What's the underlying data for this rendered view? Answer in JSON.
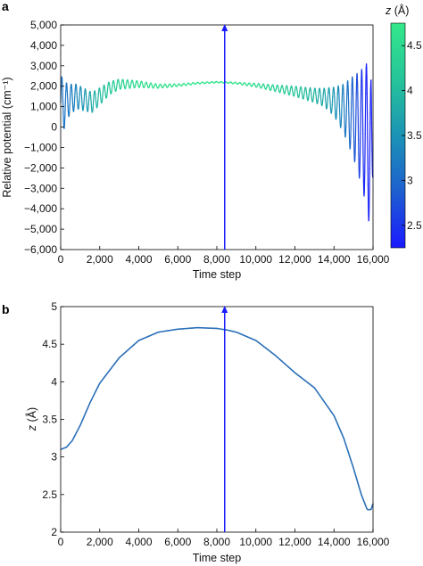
{
  "chart_data": [
    {
      "panel": "a",
      "type": "line",
      "xlabel": "Time step",
      "ylabel": "Relative potential (cm⁻¹)",
      "xlim": [
        0,
        16000
      ],
      "ylim": [
        -6000,
        5000
      ],
      "xticks": [
        0,
        2000,
        4000,
        6000,
        8000,
        10000,
        12000,
        14000,
        16000
      ],
      "xtick_labels": [
        "0",
        "2,000",
        "4,000",
        "6,000",
        "8,000",
        "10,000",
        "12,000",
        "14,000",
        "16,000"
      ],
      "yticks": [
        -6000,
        -5000,
        -4000,
        -3000,
        -2000,
        -1000,
        0,
        1000,
        2000,
        3000,
        4000,
        5000
      ],
      "ytick_labels": [
        "−6,000",
        "−5,000",
        "−4,000",
        "−3,000",
        "−2,000",
        "−1,000",
        "0",
        "1,000",
        "2,000",
        "3,000",
        "4,000",
        "5,000"
      ],
      "oscillation_period": 240,
      "x": [
        0,
        150,
        400,
        800,
        1200,
        1600,
        2000,
        2500,
        3000,
        4000,
        5000,
        6000,
        7000,
        8000,
        8500,
        9000,
        10000,
        11000,
        12000,
        13000,
        13500,
        14000,
        14500,
        15000,
        15300,
        15600,
        15800,
        15900,
        16000
      ],
      "center": [
        1200,
        1050,
        1300,
        1500,
        1350,
        1200,
        1500,
        1900,
        2100,
        2100,
        2000,
        2050,
        2150,
        2200,
        2180,
        2150,
        2050,
        1900,
        1750,
        1550,
        1450,
        1250,
        900,
        500,
        100,
        -300,
        -700,
        -1200,
        -2300
      ],
      "amplitude": [
        1400,
        1200,
        800,
        600,
        550,
        500,
        420,
        320,
        250,
        160,
        100,
        60,
        40,
        30,
        30,
        40,
        90,
        160,
        250,
        350,
        450,
        700,
        1200,
        2000,
        2600,
        3300,
        4000,
        3500,
        0
      ],
      "colorbar": {
        "label": "z (Å)",
        "range": [
          2.25,
          4.75
        ],
        "ticks": [
          2.5,
          3,
          3.5,
          4,
          4.5
        ],
        "tick_labels": [
          "2.5",
          "3",
          "3.5",
          "4",
          "4.5"
        ],
        "colors": [
          "#1a1aff",
          "#1e5fd0",
          "#1b93b5",
          "#26c49a",
          "#33e88a"
        ]
      },
      "marker_x": 8400,
      "marker_color": "#1a1aff"
    },
    {
      "panel": "b",
      "type": "line",
      "xlabel": "Time step",
      "ylabel": "z (Å)",
      "xlim": [
        0,
        16000
      ],
      "ylim": [
        2,
        5
      ],
      "xticks": [
        0,
        2000,
        4000,
        6000,
        8000,
        10000,
        12000,
        14000,
        16000
      ],
      "xtick_labels": [
        "0",
        "2,000",
        "4,000",
        "6,000",
        "8,000",
        "10,000",
        "12,000",
        "14,000",
        "16,000"
      ],
      "yticks": [
        2,
        2.5,
        3,
        3.5,
        4,
        4.5,
        5
      ],
      "ytick_labels": [
        "2",
        "2.5",
        "3",
        "3.5",
        "4",
        "4.5",
        "5"
      ],
      "x": [
        0,
        300,
        600,
        1000,
        1500,
        2000,
        3000,
        4000,
        5000,
        6000,
        7000,
        8000,
        8500,
        9000,
        10000,
        11000,
        12000,
        13000,
        14000,
        14500,
        15000,
        15400,
        15700,
        15900,
        16000
      ],
      "y": [
        3.1,
        3.13,
        3.22,
        3.42,
        3.72,
        3.98,
        4.32,
        4.55,
        4.66,
        4.7,
        4.72,
        4.71,
        4.69,
        4.66,
        4.55,
        4.35,
        4.12,
        3.92,
        3.55,
        3.25,
        2.85,
        2.5,
        2.3,
        2.3,
        2.38
      ],
      "line_color": "#2a6fb8",
      "marker_x": 8400,
      "marker_color": "#1a1aff"
    }
  ]
}
